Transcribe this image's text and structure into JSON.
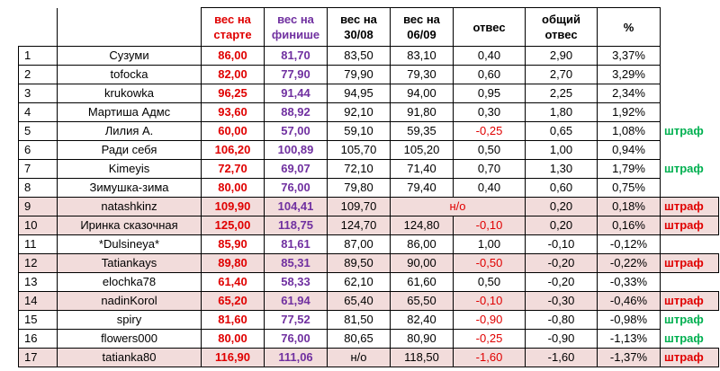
{
  "headers": {
    "start": "вес на старте",
    "finish": "вес на финише",
    "d3008": "вес на 30/08",
    "d0609": "вес на 06/09",
    "otves": "отвес",
    "total": "общий отвес",
    "pct": "%"
  },
  "rows": [
    {
      "n": "1",
      "name": "Сузуми",
      "start": "86,00",
      "finish": "81,70",
      "d1": "83,50",
      "d2": "83,10",
      "otves": "0,40",
      "total": "2,90",
      "pct": "3,37%",
      "tag": "",
      "highlight": false
    },
    {
      "n": "2",
      "name": "tofocka",
      "start": "82,00",
      "finish": "77,90",
      "d1": "79,90",
      "d2": "79,30",
      "otves": "0,60",
      "total": "2,70",
      "pct": "3,29%",
      "tag": "",
      "highlight": false
    },
    {
      "n": "3",
      "name": "krukowka",
      "start": "96,25",
      "finish": "91,44",
      "d1": "94,95",
      "d2": "94,00",
      "otves": "0,95",
      "total": "2,25",
      "pct": "2,34%",
      "tag": "",
      "highlight": false
    },
    {
      "n": "4",
      "name": "Мартиша Адмс",
      "start": "93,60",
      "finish": "88,92",
      "d1": "92,10",
      "d2": "91,80",
      "otves": "0,30",
      "total": "1,80",
      "pct": "1,92%",
      "tag": "",
      "highlight": false
    },
    {
      "n": "5",
      "name": "Лилия А.",
      "start": "60,00",
      "finish": "57,00",
      "d1": "59,10",
      "d2": "59,35",
      "otves": "-0,25",
      "total": "0,65",
      "pct": "1,08%",
      "tag": "штраф",
      "highlight": false
    },
    {
      "n": "6",
      "name": "Ради себя",
      "start": "106,20",
      "finish": "100,89",
      "d1": "105,70",
      "d2": "105,20",
      "otves": "0,50",
      "total": "1,00",
      "pct": "0,94%",
      "tag": "",
      "highlight": false
    },
    {
      "n": "7",
      "name": "Kimeyis",
      "start": "72,70",
      "finish": "69,07",
      "d1": "72,10",
      "d2": "71,40",
      "otves": "0,70",
      "total": "1,30",
      "pct": "1,79%",
      "tag": "штраф",
      "highlight": false
    },
    {
      "n": "8",
      "name": "Зимушка-зима",
      "start": "80,00",
      "finish": "76,00",
      "d1": "79,80",
      "d2": "79,40",
      "otves": "0,40",
      "total": "0,60",
      "pct": "0,75%",
      "tag": "",
      "highlight": false
    },
    {
      "n": "9",
      "name": "natashkinz",
      "start": "109,90",
      "finish": "104,41",
      "d1": "109,70",
      "d2": "",
      "otves": "",
      "merged": "н/о",
      "total": "0,20",
      "pct": "0,18%",
      "tag": "штраф",
      "highlight": true
    },
    {
      "n": "10",
      "name": "Иринка сказочная",
      "start": "125,00",
      "finish": "118,75",
      "d1": "124,70",
      "d2": "124,80",
      "otves": "-0,10",
      "total": "0,20",
      "pct": "0,16%",
      "tag": "штраф",
      "highlight": true
    },
    {
      "n": "11",
      "name": "*Dulsineya*",
      "start": "85,90",
      "finish": "81,61",
      "d1": "87,00",
      "d2": "86,00",
      "otves": "1,00",
      "total": "-0,10",
      "pct": "-0,12%",
      "tag": "",
      "highlight": false
    },
    {
      "n": "12",
      "name": "Tatiankays",
      "start": "89,80",
      "finish": "85,31",
      "d1": "89,50",
      "d2": "90,00",
      "otves": "-0,50",
      "total": "-0,20",
      "pct": "-0,22%",
      "tag": "штраф",
      "highlight": true
    },
    {
      "n": "13",
      "name": "elochka78",
      "start": "61,40",
      "finish": "58,33",
      "d1": "62,10",
      "d2": "61,60",
      "otves": "0,50",
      "total": "-0,20",
      "pct": "-0,33%",
      "tag": "",
      "highlight": false
    },
    {
      "n": "14",
      "name": "nadinKorol",
      "start": "65,20",
      "finish": "61,94",
      "d1": "65,40",
      "d2": "65,50",
      "otves": "-0,10",
      "total": "-0,30",
      "pct": "-0,46%",
      "tag": "штраф",
      "highlight": true
    },
    {
      "n": "15",
      "name": "spiry",
      "start": "81,60",
      "finish": "77,52",
      "d1": "81,50",
      "d2": "82,40",
      "otves": "-0,90",
      "total": "-0,80",
      "pct": "-0,98%",
      "tag": "штраф",
      "highlight": false
    },
    {
      "n": "16",
      "name": "flowers000",
      "start": "80,00",
      "finish": "76,00",
      "d1": "80,65",
      "d2": "80,90",
      "otves": "-0,25",
      "total": "-0,90",
      "pct": "-1,13%",
      "tag": "штраф",
      "highlight": false
    },
    {
      "n": "17",
      "name": "tatianka80",
      "start": "116,90",
      "finish": "111,06",
      "d1": "н/о",
      "d2": "118,50",
      "otves": "-1,60",
      "total": "-1,60",
      "pct": "-1,37%",
      "tag": "штраф",
      "highlight": true
    }
  ],
  "colors": {
    "start_red": "#e00000",
    "finish_purple": "#7030a0",
    "negative_red": "#e00000",
    "tag_green": "#00b050",
    "tag_red": "#e00000",
    "highlight_pink": "#f2dcdb"
  }
}
